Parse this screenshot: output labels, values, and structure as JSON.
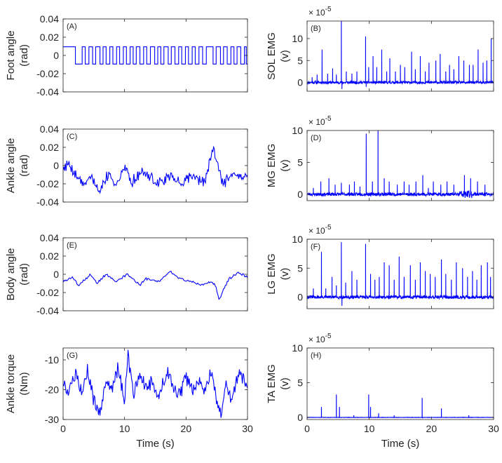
{
  "chart_data": [
    {
      "id": "A",
      "type": "line",
      "panel_label": "(A)",
      "ylabel": [
        "Foot angle",
        "(rad)"
      ],
      "xlim": [
        0,
        30
      ],
      "ylim": [
        -0.04,
        0.04
      ],
      "yticks": [
        "0.04",
        "0.02",
        "0",
        "-0.02",
        "-0.04"
      ],
      "ytick_values": [
        0.04,
        0.02,
        0,
        -0.02,
        -0.04
      ],
      "xticks": [],
      "xlabel": "",
      "series": [
        {
          "name": "foot angle",
          "kind": "square",
          "high": 0.0095,
          "low": -0.0095,
          "transitions": [
            2.0,
            3.1,
            3.6,
            4.2,
            4.8,
            5.3,
            6.0,
            6.5,
            7.0,
            7.6,
            8.1,
            8.7,
            9.2,
            9.8,
            10.3,
            10.9,
            11.4,
            11.9,
            12.5,
            13.1,
            13.6,
            14.2,
            14.9,
            15.4,
            15.9,
            16.4,
            17.1,
            17.6,
            18.2,
            18.8,
            19.3,
            19.9,
            20.4,
            21.0,
            21.5,
            22.1,
            22.7,
            23.3,
            24.4,
            24.9,
            25.6,
            26.1,
            26.7,
            27.3,
            27.8,
            28.3,
            28.9,
            29.5,
            29.8
          ]
        }
      ]
    },
    {
      "id": "B",
      "type": "line",
      "panel_label": "(B)",
      "ylabel": [
        "SOL EMG",
        "(v)"
      ],
      "exponent": "× 10^-5",
      "exp_base": "× 10",
      "exp_power": "-5",
      "xlim": [
        0,
        30
      ],
      "ylim": [
        -2,
        14
      ],
      "yticks": [
        "10",
        "5",
        "0"
      ],
      "ytick_values": [
        10,
        5,
        0
      ],
      "xticks": [],
      "xlabel": "",
      "series": [
        {
          "name": "SOL EMG",
          "kind": "spikes",
          "baseline": 0,
          "noise": 0.6,
          "seed": 11,
          "spikes": [
            [
              0.8,
              1.2
            ],
            [
              1.6,
              1.8
            ],
            [
              2.4,
              7.5
            ],
            [
              3.3,
              2.0
            ],
            [
              4.1,
              3.2
            ],
            [
              4.7,
              1.8
            ],
            [
              5.5,
              14
            ],
            [
              6.3,
              2.5
            ],
            [
              7.2,
              2.0
            ],
            [
              8.0,
              2.5
            ],
            [
              9.4,
              10.5
            ],
            [
              9.9,
              3.5
            ],
            [
              10.6,
              6.0
            ],
            [
              11.2,
              3.5
            ],
            [
              12.0,
              7.5
            ],
            [
              12.8,
              2.5
            ],
            [
              13.3,
              5.5
            ],
            [
              14.2,
              2.5
            ],
            [
              15.0,
              4.0
            ],
            [
              15.7,
              3.5
            ],
            [
              16.8,
              7.0
            ],
            [
              17.4,
              3.0
            ],
            [
              18.2,
              6.0
            ],
            [
              19.0,
              2.5
            ],
            [
              19.6,
              4.5
            ],
            [
              20.7,
              5.0
            ],
            [
              21.4,
              6.5
            ],
            [
              22.3,
              2.5
            ],
            [
              22.9,
              4.0
            ],
            [
              23.6,
              3.0
            ],
            [
              24.4,
              6.0
            ],
            [
              25.2,
              5.0
            ],
            [
              26.1,
              4.0
            ],
            [
              26.7,
              4.0
            ],
            [
              27.5,
              7.5
            ],
            [
              28.3,
              4.5
            ],
            [
              28.9,
              5.0
            ],
            [
              29.6,
              10.0
            ],
            [
              5.6,
              -1.5
            ],
            [
              9.5,
              -1.0
            ]
          ]
        }
      ]
    },
    {
      "id": "C",
      "type": "line",
      "panel_label": "(C)",
      "ylabel": [
        "Ankle angle",
        "(rad)"
      ],
      "xlim": [
        0,
        30
      ],
      "ylim": [
        -0.04,
        0.04
      ],
      "yticks": [
        "0.04",
        "0.02",
        "0",
        "-0.02",
        "-0.04"
      ],
      "ytick_values": [
        0.04,
        0.02,
        0,
        -0.02,
        -0.04
      ],
      "xticks": [],
      "xlabel": "",
      "series": [
        {
          "name": "ankle angle",
          "kind": "noise",
          "seed": 7,
          "step": 0.12,
          "scale": 0.009,
          "bias": -0.006,
          "clip": [
            -0.035,
            0.023
          ],
          "anchors": [
            [
              0,
              0.0
            ],
            [
              1.0,
              0.002
            ],
            [
              2.0,
              -0.01
            ],
            [
              3.5,
              -0.02
            ],
            [
              4.5,
              -0.01
            ],
            [
              5.8,
              -0.03
            ],
            [
              7.0,
              -0.012
            ],
            [
              9.0,
              -0.02
            ],
            [
              10.2,
              0.0
            ],
            [
              11.0,
              -0.018
            ],
            [
              13.0,
              -0.005
            ],
            [
              15.0,
              -0.02
            ],
            [
              17.5,
              -0.012
            ],
            [
              19.0,
              -0.02
            ],
            [
              21.0,
              -0.01
            ],
            [
              23.0,
              -0.02
            ],
            [
              24.4,
              0.018
            ],
            [
              25.3,
              0.0
            ],
            [
              26.0,
              -0.02
            ],
            [
              27.5,
              -0.01
            ],
            [
              29.0,
              -0.015
            ],
            [
              30,
              -0.01
            ]
          ]
        }
      ]
    },
    {
      "id": "D",
      "type": "line",
      "panel_label": "(D)",
      "ylabel": [
        "MG EMG",
        "(v)"
      ],
      "exponent": "× 10^-5",
      "exp_base": "× 10",
      "exp_power": "-5",
      "xlim": [
        0,
        30
      ],
      "ylim": [
        -1,
        10
      ],
      "yticks": [
        "10",
        "5",
        "0"
      ],
      "ytick_values": [
        10,
        5,
        0
      ],
      "xticks": [],
      "xlabel": "",
      "series": [
        {
          "name": "MG EMG",
          "kind": "spikes",
          "baseline": 0,
          "noise": 0.5,
          "seed": 23,
          "burst": [
            24.5,
            26.5,
            1.2
          ],
          "spikes": [
            [
              1.0,
              1.0
            ],
            [
              2.2,
              2.0
            ],
            [
              3.5,
              2.5
            ],
            [
              4.5,
              1.5
            ],
            [
              5.5,
              1.8
            ],
            [
              6.8,
              1.5
            ],
            [
              7.6,
              2.0
            ],
            [
              8.5,
              1.2
            ],
            [
              9.5,
              9.5
            ],
            [
              10.5,
              2.0
            ],
            [
              11.4,
              10.0
            ],
            [
              12.4,
              2.5
            ],
            [
              13.2,
              2.0
            ],
            [
              14.5,
              1.5
            ],
            [
              15.6,
              2.0
            ],
            [
              16.4,
              1.5
            ],
            [
              17.5,
              2.0
            ],
            [
              18.6,
              3.0
            ],
            [
              19.5,
              1.0
            ],
            [
              20.3,
              2.0
            ],
            [
              21.5,
              1.5
            ],
            [
              22.5,
              2.0
            ],
            [
              23.6,
              1.5
            ],
            [
              25.3,
              3.0
            ],
            [
              26.3,
              2.5
            ],
            [
              27.4,
              2.0
            ],
            [
              28.6,
              1.5
            ]
          ]
        }
      ]
    },
    {
      "id": "E",
      "type": "line",
      "panel_label": "(E)",
      "ylabel": [
        "Body angle",
        "(rad)"
      ],
      "xlim": [
        0,
        30
      ],
      "ylim": [
        -0.04,
        0.04
      ],
      "yticks": [
        "0.04",
        "0.02",
        "0",
        "-0.02",
        "-0.04"
      ],
      "ytick_values": [
        0.04,
        0.02,
        0,
        -0.02,
        -0.04
      ],
      "xticks": [],
      "xlabel": "",
      "series": [
        {
          "name": "body angle",
          "kind": "noise",
          "seed": 3,
          "step": 0.15,
          "scale": 0.0025,
          "bias": 0,
          "clip": [
            -0.03,
            0.006
          ],
          "anchors": [
            [
              0,
              -0.008
            ],
            [
              1.5,
              -0.003
            ],
            [
              2.5,
              -0.012
            ],
            [
              4.5,
              0.0
            ],
            [
              5.5,
              -0.01
            ],
            [
              7.0,
              0.0
            ],
            [
              8.5,
              -0.008
            ],
            [
              10.5,
              0.0
            ],
            [
              12.5,
              -0.012
            ],
            [
              13.5,
              -0.005
            ],
            [
              15.5,
              -0.008
            ],
            [
              17.5,
              0.003
            ],
            [
              19.0,
              -0.005
            ],
            [
              21.0,
              -0.008
            ],
            [
              22.5,
              -0.012
            ],
            [
              23.8,
              -0.008
            ],
            [
              24.8,
              -0.012
            ],
            [
              25.4,
              -0.028
            ],
            [
              26.0,
              -0.018
            ],
            [
              27.0,
              -0.005
            ],
            [
              28.5,
              0.002
            ],
            [
              30,
              -0.003
            ]
          ]
        }
      ]
    },
    {
      "id": "F",
      "type": "line",
      "panel_label": "(F)",
      "ylabel": [
        "LG EMG",
        "(v)"
      ],
      "exponent": "× 10^-5",
      "exp_base": "× 10",
      "exp_power": "-5",
      "xlim": [
        0,
        30
      ],
      "ylim": [
        -2,
        10
      ],
      "yticks": [
        "10",
        "5",
        "0"
      ],
      "ytick_values": [
        10,
        5,
        0
      ],
      "xticks": [],
      "xlabel": "",
      "series": [
        {
          "name": "LG EMG",
          "kind": "spikes",
          "baseline": 0,
          "noise": 0.55,
          "seed": 31,
          "spikes": [
            [
              1.0,
              1.5
            ],
            [
              2.3,
              7.8
            ],
            [
              3.0,
              1.5
            ],
            [
              4.0,
              3.5
            ],
            [
              4.7,
              2.0
            ],
            [
              5.5,
              9.5
            ],
            [
              6.2,
              2.5
            ],
            [
              7.2,
              4.5
            ],
            [
              8.0,
              3.0
            ],
            [
              9.4,
              9.2
            ],
            [
              10.2,
              4.0
            ],
            [
              10.9,
              3.0
            ],
            [
              11.6,
              3.5
            ],
            [
              12.4,
              6.0
            ],
            [
              13.2,
              5.5
            ],
            [
              14.0,
              3.0
            ],
            [
              14.8,
              7.0
            ],
            [
              15.6,
              3.5
            ],
            [
              16.6,
              5.5
            ],
            [
              17.4,
              3.0
            ],
            [
              18.2,
              6.0
            ],
            [
              19.0,
              4.5
            ],
            [
              19.8,
              4.0
            ],
            [
              20.6,
              3.5
            ],
            [
              21.6,
              6.5
            ],
            [
              22.3,
              4.0
            ],
            [
              23.2,
              3.0
            ],
            [
              24.0,
              6.0
            ],
            [
              25.0,
              5.0
            ],
            [
              25.8,
              3.5
            ],
            [
              26.6,
              4.5
            ],
            [
              27.3,
              3.0
            ],
            [
              28.0,
              5.5
            ],
            [
              29.0,
              6.0
            ],
            [
              29.5,
              3.5
            ],
            [
              5.6,
              -1.5
            ]
          ]
        }
      ]
    },
    {
      "id": "G",
      "type": "line",
      "panel_label": "(G)",
      "ylabel": [
        "Ankle torque",
        "(Nm)"
      ],
      "xlim": [
        0,
        30
      ],
      "ylim": [
        -30,
        -6
      ],
      "yticks": [
        "-10",
        "-20",
        "-30"
      ],
      "ytick_values": [
        -10,
        -20,
        -30
      ],
      "xticks": [
        "0",
        "10",
        "20",
        "30"
      ],
      "xtick_values": [
        0,
        10,
        20,
        30
      ],
      "xlabel": "Time (s)",
      "series": [
        {
          "name": "ankle torque",
          "kind": "noise",
          "seed": 5,
          "step": 0.12,
          "scale": 4.5,
          "bias": 0,
          "clip": [
            -30,
            -6
          ],
          "anchors": [
            [
              0,
              -17
            ],
            [
              1.0,
              -21
            ],
            [
              2.0,
              -15
            ],
            [
              3.0,
              -20
            ],
            [
              4.0,
              -13
            ],
            [
              5.0,
              -24
            ],
            [
              6.0,
              -28
            ],
            [
              7.0,
              -16
            ],
            [
              8.0,
              -20
            ],
            [
              9.0,
              -12
            ],
            [
              10.0,
              -25
            ],
            [
              10.5,
              -8
            ],
            [
              11.5,
              -22
            ],
            [
              12.5,
              -14
            ],
            [
              13.5,
              -20
            ],
            [
              14.5,
              -17
            ],
            [
              15.5,
              -22
            ],
            [
              17.0,
              -14
            ],
            [
              18.0,
              -19
            ],
            [
              19.0,
              -22
            ],
            [
              20.0,
              -16
            ],
            [
              21.0,
              -20
            ],
            [
              22.0,
              -17
            ],
            [
              23.0,
              -20
            ],
            [
              24.0,
              -14
            ],
            [
              25.0,
              -24
            ],
            [
              25.7,
              -29
            ],
            [
              26.5,
              -18
            ],
            [
              27.5,
              -24
            ],
            [
              28.5,
              -15
            ],
            [
              29.5,
              -17
            ],
            [
              30,
              -19
            ]
          ]
        }
      ]
    },
    {
      "id": "H",
      "type": "line",
      "panel_label": "(H)",
      "ylabel": [
        "TA EMG",
        "(v)"
      ],
      "exponent": "× 10^-5",
      "exp_base": "× 10",
      "exp_power": "-5",
      "xlim": [
        0,
        30
      ],
      "ylim": [
        -0.3,
        10
      ],
      "yticks": [
        "10",
        "5",
        "0"
      ],
      "ytick_values": [
        10,
        5,
        0
      ],
      "xticks": [
        "0",
        "10",
        "20",
        "30"
      ],
      "xtick_values": [
        0,
        10,
        20,
        30
      ],
      "xlabel": "Time (s)",
      "series": [
        {
          "name": "TA EMG",
          "kind": "spikes",
          "baseline": 0,
          "noise": 0.05,
          "seed": 41,
          "spikes": [
            [
              2.3,
              1.5
            ],
            [
              4.7,
              3.3
            ],
            [
              5.2,
              1.5
            ],
            [
              9.9,
              3.3
            ],
            [
              10.2,
              1.5
            ],
            [
              18.5,
              2.8
            ],
            [
              21.6,
              1.3
            ],
            [
              11.5,
              0.6
            ],
            [
              7.5,
              0.3
            ],
            [
              14.0,
              0.3
            ],
            [
              26.0,
              0.3
            ]
          ]
        }
      ]
    }
  ]
}
